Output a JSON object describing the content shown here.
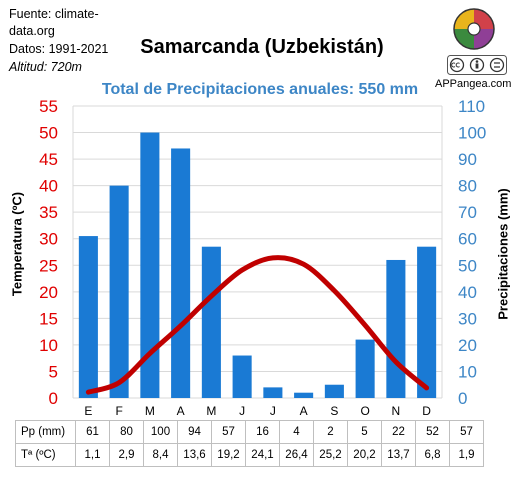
{
  "source": {
    "line1": "Fuente: climate-",
    "line2": "data.org",
    "period": "Datos: 1991-2021",
    "altitude": "Altitud: 720m"
  },
  "brand": {
    "site": "APPangea.com"
  },
  "chart_data": {
    "type": "bar",
    "title": "Samarcanda (Uzbekistán)",
    "subtitle": "Total de Precipitaciones anuales: 550 mm",
    "categories": [
      "E",
      "F",
      "M",
      "A",
      "M",
      "J",
      "J",
      "A",
      "S",
      "O",
      "N",
      "D"
    ],
    "series": [
      {
        "name": "Pp (mm)",
        "type": "bar",
        "axis": "right",
        "values": [
          61,
          80,
          100,
          94,
          57,
          16,
          4,
          2,
          5,
          22,
          52,
          57
        ],
        "color": "#1a7ad4"
      },
      {
        "name": "Tª (ºC)",
        "type": "line",
        "axis": "left",
        "values": [
          1.1,
          2.9,
          8.4,
          13.6,
          19.2,
          24.1,
          26.4,
          25.2,
          20.2,
          13.7,
          6.8,
          1.9
        ],
        "color": "#c00000"
      }
    ],
    "y_left": {
      "label": "Temperatura (ºC)",
      "min": 0,
      "max": 55,
      "step": 5,
      "color": "#e00000"
    },
    "y_right": {
      "label": "Precipitaciones (mm)",
      "min": 0,
      "max": 110,
      "step": 10,
      "color": "#3d86c6"
    },
    "table": {
      "row1_label": "Pp (mm)",
      "row1": [
        "61",
        "80",
        "100",
        "94",
        "57",
        "16",
        "4",
        "2",
        "5",
        "22",
        "52",
        "57"
      ],
      "row2_label": "Tª (ºC)",
      "row2": [
        "1,1",
        "2,9",
        "8,4",
        "13,6",
        "19,2",
        "24,1",
        "26,4",
        "25,2",
        "20,2",
        "13,7",
        "6,8",
        "1,9"
      ]
    }
  }
}
